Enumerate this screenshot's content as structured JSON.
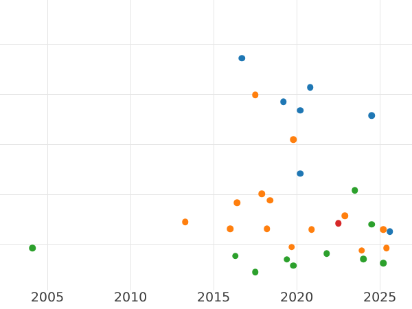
{
  "figure": {
    "background_color": "#ffffff",
    "grid_color": "#e5e5e5",
    "tick_label_color": "#3b3b3b",
    "tick_label_font_size_px": 19
  },
  "chart_data": {
    "type": "scatter",
    "title": "",
    "subtitle": "",
    "xlabel": "",
    "ylabel": "",
    "grid": true,
    "legend": false,
    "marker_diameter_px": 9.5,
    "x_axis": {
      "tick_labels": [
        "2005",
        "2010",
        "2015",
        "2020",
        "2025"
      ],
      "tick_values": [
        2005,
        2010,
        2015,
        2020,
        2025
      ],
      "visible_range": [
        2002.2,
        2026.9
      ]
    },
    "y_axis": {
      "unlabeled": true,
      "note": "no y tick labels visible in screenshot; y given in gridline units, visible horizontal gridlines at units 1-5 (bottom to top)",
      "gridline_units": [
        1,
        2,
        3,
        4,
        5
      ],
      "visible_range": [
        0.08,
        5.87
      ]
    },
    "series": [
      {
        "name": "blue-series",
        "color": "#1f77b4",
        "points": [
          {
            "x": 2016.7,
            "y": 4.71
          },
          {
            "x": 2020.8,
            "y": 4.13
          },
          {
            "x": 2019.2,
            "y": 3.84
          },
          {
            "x": 2020.2,
            "y": 3.67
          },
          {
            "x": 2024.5,
            "y": 3.57
          },
          {
            "x": 2020.2,
            "y": 2.41
          },
          {
            "x": 2025.6,
            "y": 1.26
          }
        ]
      },
      {
        "name": "orange-series",
        "color": "#ff7f0e",
        "points": [
          {
            "x": 2017.5,
            "y": 3.98
          },
          {
            "x": 2019.8,
            "y": 3.09
          },
          {
            "x": 2017.9,
            "y": 2.01
          },
          {
            "x": 2018.4,
            "y": 1.88
          },
          {
            "x": 2016.4,
            "y": 1.83
          },
          {
            "x": 2022.9,
            "y": 1.57
          },
          {
            "x": 2013.3,
            "y": 1.45
          },
          {
            "x": 2016.0,
            "y": 1.31
          },
          {
            "x": 2018.2,
            "y": 1.31
          },
          {
            "x": 2020.9,
            "y": 1.3
          },
          {
            "x": 2025.2,
            "y": 1.3
          },
          {
            "x": 2019.7,
            "y": 0.95
          },
          {
            "x": 2025.4,
            "y": 0.93
          },
          {
            "x": 2023.9,
            "y": 0.88
          }
        ]
      },
      {
        "name": "green-series",
        "color": "#2ca02c",
        "points": [
          {
            "x": 2023.5,
            "y": 2.08
          },
          {
            "x": 2024.5,
            "y": 1.4
          },
          {
            "x": 2004.1,
            "y": 0.93
          },
          {
            "x": 2021.8,
            "y": 0.82
          },
          {
            "x": 2016.3,
            "y": 0.77
          },
          {
            "x": 2024.0,
            "y": 0.71
          },
          {
            "x": 2019.4,
            "y": 0.7
          },
          {
            "x": 2025.2,
            "y": 0.63
          },
          {
            "x": 2019.8,
            "y": 0.58
          },
          {
            "x": 2017.5,
            "y": 0.45
          }
        ]
      },
      {
        "name": "red-series",
        "color": "#d62728",
        "points": [
          {
            "x": 2022.5,
            "y": 1.42
          }
        ]
      }
    ]
  }
}
